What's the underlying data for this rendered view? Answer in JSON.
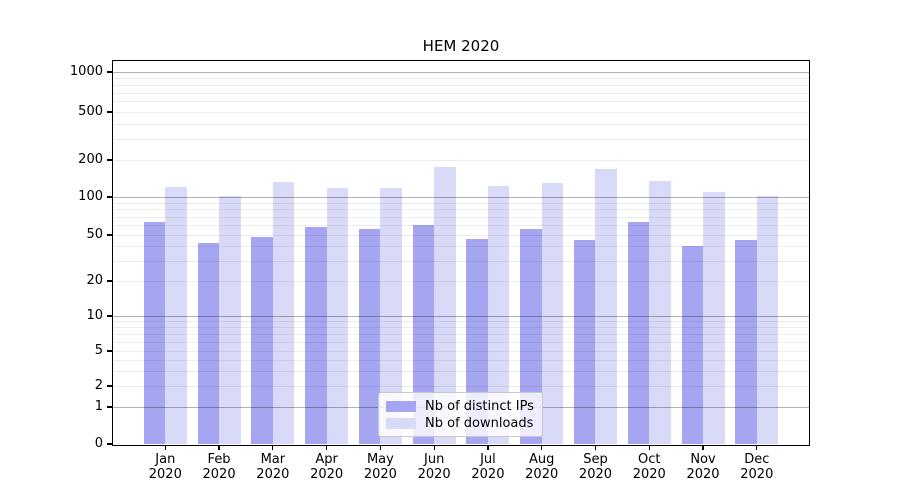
{
  "chart_data": {
    "type": "bar",
    "title": "HEM 2020",
    "categories": [
      "Jan 2020",
      "Feb 2020",
      "Mar 2020",
      "Apr 2020",
      "May 2020",
      "Jun 2020",
      "Jul 2020",
      "Aug 2020",
      "Sep 2020",
      "Oct 2020",
      "Nov 2020",
      "Dec 2020"
    ],
    "months": [
      "Jan",
      "Feb",
      "Mar",
      "Apr",
      "May",
      "Jun",
      "Jul",
      "Aug",
      "Sep",
      "Oct",
      "Nov",
      "Dec"
    ],
    "year_label": "2020",
    "series": [
      {
        "name": "Nb of distinct IPs",
        "color": "#a5a5f2",
        "values": [
          63,
          43,
          48,
          58,
          56,
          60,
          46,
          56,
          45,
          63,
          40,
          45
        ]
      },
      {
        "name": "Nb of downloads",
        "color": "#d9d9f8",
        "values": [
          120,
          101,
          133,
          118,
          119,
          177,
          123,
          130,
          170,
          136,
          110,
          101
        ]
      }
    ],
    "yscale": "symlog",
    "ylim": [
      0,
      1150
    ],
    "y_ticks": [
      0,
      1,
      2,
      5,
      10,
      20,
      50,
      100,
      200,
      500,
      1000
    ],
    "xlabel": "",
    "ylabel": "",
    "grid": "both-horizontal",
    "legend_position": "lower center",
    "colors": {
      "background": "#ffffff",
      "spine": "#000000",
      "major_grid": "#b3b3b3",
      "minor_grid": "#ededed",
      "legend_border": "#c9c9c9"
    }
  }
}
